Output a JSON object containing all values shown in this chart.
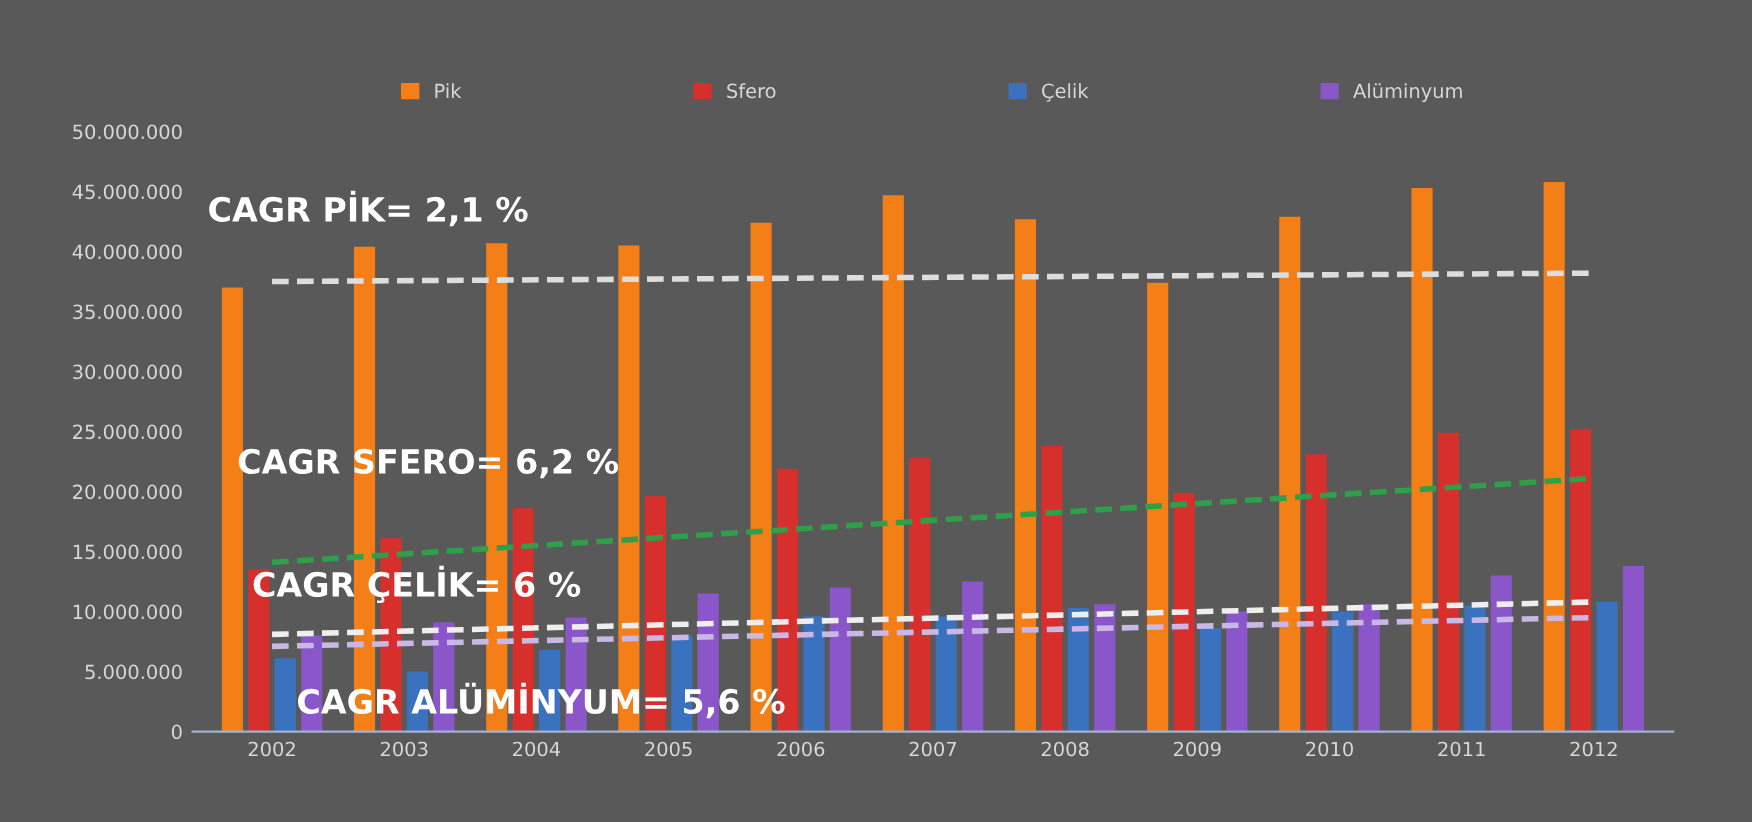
{
  "chart_data": {
    "type": "bar",
    "categories": [
      "2002",
      "2003",
      "2004",
      "2005",
      "2006",
      "2007",
      "2008",
      "2009",
      "2010",
      "2011",
      "2012"
    ],
    "series": [
      {
        "name": "Pik",
        "color": "#f57f17",
        "values": [
          37000000,
          40400000,
          40700000,
          40500000,
          42400000,
          44700000,
          42700000,
          37400000,
          42900000,
          45300000,
          45800000
        ]
      },
      {
        "name": "Sfero",
        "color": "#d7302c",
        "values": [
          13500000,
          16100000,
          18600000,
          19600000,
          21900000,
          22800000,
          23800000,
          19900000,
          23100000,
          24900000,
          25200000
        ]
      },
      {
        "name": "Çelik",
        "color": "#3b72bf",
        "values": [
          6100000,
          5000000,
          6800000,
          8000000,
          9600000,
          9600000,
          10300000,
          8600000,
          10000000,
          10500000,
          10800000
        ]
      },
      {
        "name": "Alüminyum",
        "color": "#8a56c9",
        "values": [
          8000000,
          9100000,
          9500000,
          11500000,
          12000000,
          12500000,
          10600000,
          10000000,
          10600000,
          13000000,
          13800000
        ]
      },
      {
        "type": "line",
        "color": "#dddddd",
        "line_style": "dashed",
        "values": [
          37500000,
          null,
          null,
          null,
          null,
          null,
          null,
          null,
          null,
          null,
          38200000
        ]
      },
      {
        "type": "line",
        "color": "#2ea04a",
        "line_style": "dashed",
        "values": [
          14100000,
          null,
          null,
          null,
          null,
          null,
          null,
          null,
          null,
          null,
          21100000
        ]
      },
      {
        "type": "line",
        "color": "#eeeeee",
        "line_style": "dashed",
        "values": [
          8100000,
          null,
          null,
          null,
          null,
          null,
          null,
          null,
          null,
          null,
          10800000
        ]
      },
      {
        "type": "line",
        "color": "#c9b8e6",
        "line_style": "dashed",
        "values": [
          7100000,
          null,
          null,
          null,
          null,
          null,
          null,
          null,
          null,
          null,
          9500000
        ]
      }
    ],
    "ylim": [
      0,
      50000000
    ],
    "yticks": [
      0,
      {
        "value": 5000000,
        "label": "5.000.000"
      },
      {
        "value": 10000000,
        "label": "10.000.000"
      },
      {
        "value": 15000000,
        "label": "15.000.000"
      },
      {
        "value": 20000000,
        "label": "20.000.000"
      },
      {
        "value": 25000000,
        "label": "25.000.000"
      },
      {
        "value": 30000000,
        "label": "30.000.000"
      },
      {
        "value": 35000000,
        "label": "35.000.000"
      },
      {
        "value": 40000000,
        "label": "40.000.000"
      },
      {
        "value": 45000000,
        "label": "45.000.000"
      },
      {
        "value": 50000000,
        "label": "50.000.000"
      }
    ],
    "annotations": [
      "CAGR PİK= 2,1 %",
      "CAGR SFERO= 6,2 %",
      "CAGR ÇELİK= 6 %",
      "CAGR ALÜMİNYUM= 5,6 %"
    ],
    "legend": "top"
  }
}
